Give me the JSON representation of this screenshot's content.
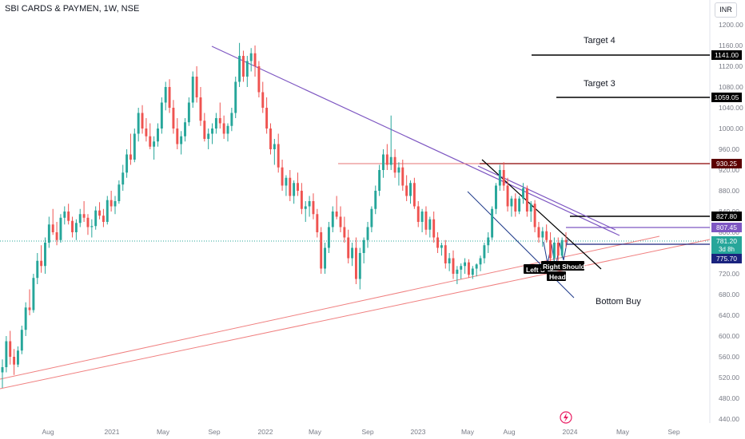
{
  "title": "SBI CARDS & PAYMEN, 1W, NSE",
  "currency": "INR",
  "colors": {
    "up": "#26a69a",
    "down": "#ef5350",
    "wedge": "#7e57c2",
    "support": "#f08080",
    "resistance": "#e57373",
    "text": "#131722",
    "axis": "#787b86"
  },
  "chart_data": {
    "type": "candlestick",
    "timeframe": "1W",
    "y_axis": {
      "ticks": [
        1200,
        1160,
        1120,
        1080,
        1040,
        1000,
        960,
        920,
        880,
        840,
        800,
        760,
        720,
        680,
        640,
        600,
        560,
        520,
        480,
        440
      ],
      "tick_labels": [
        "1200.00",
        "1160.00",
        "1120.00",
        "1080.00",
        "1040.00",
        "1000.00",
        "960.00",
        "920.00",
        "880.00",
        "840.00",
        "800.00",
        "760.00",
        "720.00",
        "680.00",
        "640.00",
        "600.00",
        "560.00",
        "520.00",
        "480.00",
        "440.00"
      ],
      "range": [
        430,
        1230
      ]
    },
    "x_axis": {
      "labels": [
        "Aug",
        "2021",
        "May",
        "Sep",
        "2022",
        "May",
        "Sep",
        "2023",
        "May",
        "Aug",
        "2024",
        "May",
        "Sep"
      ]
    },
    "price_labels": [
      {
        "value": "1141.00",
        "style": "black"
      },
      {
        "value": "1059.05",
        "style": "black"
      },
      {
        "value": "930.25",
        "style": "dark-red"
      },
      {
        "value": "827.80",
        "style": "black"
      },
      {
        "value": "807.45",
        "style": "purple"
      },
      {
        "value": "781.20",
        "style": "teal"
      },
      {
        "value": "3d 8h",
        "style": "teal"
      },
      {
        "value": "775.70",
        "style": "navy"
      }
    ],
    "annotations": [
      "Target 4",
      "Target 3",
      "Bottom Buy",
      "Left S",
      "Right Shoulder",
      "Head"
    ],
    "candles": [
      [
        530,
        555,
        500,
        540
      ],
      [
        540,
        600,
        530,
        590
      ],
      [
        590,
        610,
        545,
        560
      ],
      [
        560,
        575,
        525,
        545
      ],
      [
        545,
        580,
        540,
        572
      ],
      [
        572,
        620,
        565,
        612
      ],
      [
        612,
        665,
        600,
        655
      ],
      [
        655,
        690,
        640,
        650
      ],
      [
        650,
        720,
        645,
        712
      ],
      [
        712,
        760,
        700,
        745
      ],
      [
        745,
        775,
        722,
        735
      ],
      [
        735,
        790,
        720,
        780
      ],
      [
        780,
        830,
        770,
        815
      ],
      [
        815,
        845,
        795,
        800
      ],
      [
        800,
        820,
        775,
        785
      ],
      [
        785,
        835,
        780,
        828
      ],
      [
        828,
        850,
        815,
        840
      ],
      [
        840,
        855,
        815,
        822
      ],
      [
        822,
        830,
        790,
        800
      ],
      [
        800,
        825,
        785,
        818
      ],
      [
        818,
        845,
        810,
        835
      ],
      [
        835,
        860,
        820,
        828
      ],
      [
        828,
        835,
        795,
        810
      ],
      [
        810,
        825,
        790,
        812
      ],
      [
        812,
        850,
        805,
        842
      ],
      [
        842,
        858,
        825,
        832
      ],
      [
        832,
        845,
        810,
        820
      ],
      [
        820,
        870,
        815,
        862
      ],
      [
        862,
        880,
        840,
        850
      ],
      [
        850,
        870,
        835,
        860
      ],
      [
        860,
        900,
        855,
        892
      ],
      [
        892,
        930,
        880,
        915
      ],
      [
        915,
        960,
        905,
        950
      ],
      [
        950,
        990,
        930,
        940
      ],
      [
        940,
        1000,
        935,
        990
      ],
      [
        990,
        1040,
        975,
        1030
      ],
      [
        1030,
        1045,
        990,
        1000
      ],
      [
        1000,
        1020,
        975,
        985
      ],
      [
        985,
        1010,
        960,
        965
      ],
      [
        965,
        985,
        940,
        975
      ],
      [
        975,
        1010,
        965,
        1000
      ],
      [
        1000,
        1060,
        990,
        1050
      ],
      [
        1050,
        1090,
        1035,
        1080
      ],
      [
        1080,
        1095,
        1030,
        1040
      ],
      [
        1040,
        1055,
        990,
        1000
      ],
      [
        1000,
        1020,
        960,
        970
      ],
      [
        970,
        995,
        950,
        985
      ],
      [
        985,
        1020,
        975,
        1012
      ],
      [
        1012,
        1060,
        1005,
        1050
      ],
      [
        1050,
        1110,
        1040,
        1100
      ],
      [
        1100,
        1120,
        1050,
        1060
      ],
      [
        1060,
        1080,
        1005,
        1015
      ],
      [
        1015,
        1030,
        975,
        980
      ],
      [
        980,
        1000,
        960,
        990
      ],
      [
        990,
        1010,
        970,
        1000
      ],
      [
        1000,
        1030,
        990,
        1020
      ],
      [
        1020,
        1050,
        1000,
        1010
      ],
      [
        1010,
        1025,
        980,
        990
      ],
      [
        990,
        1010,
        975,
        1005
      ],
      [
        1005,
        1040,
        995,
        1030
      ],
      [
        1030,
        1100,
        1020,
        1090
      ],
      [
        1090,
        1165,
        1080,
        1140
      ],
      [
        1140,
        1150,
        1090,
        1100
      ],
      [
        1100,
        1140,
        1080,
        1130
      ],
      [
        1130,
        1155,
        1110,
        1145
      ],
      [
        1145,
        1160,
        1100,
        1120
      ],
      [
        1120,
        1130,
        1060,
        1070
      ],
      [
        1070,
        1090,
        1030,
        1040
      ],
      [
        1040,
        1060,
        990,
        1000
      ],
      [
        1000,
        1010,
        950,
        960
      ],
      [
        960,
        980,
        930,
        970
      ],
      [
        970,
        990,
        915,
        925
      ],
      [
        925,
        940,
        880,
        890
      ],
      [
        890,
        910,
        870,
        905
      ],
      [
        905,
        920,
        860,
        870
      ],
      [
        870,
        900,
        855,
        895
      ],
      [
        895,
        915,
        870,
        880
      ],
      [
        880,
        895,
        835,
        845
      ],
      [
        845,
        860,
        820,
        850
      ],
      [
        850,
        870,
        830,
        860
      ],
      [
        860,
        875,
        825,
        835
      ],
      [
        835,
        845,
        790,
        800
      ],
      [
        800,
        810,
        720,
        730
      ],
      [
        730,
        780,
        720,
        770
      ],
      [
        770,
        820,
        760,
        810
      ],
      [
        810,
        850,
        800,
        840
      ],
      [
        840,
        870,
        825,
        830
      ],
      [
        830,
        850,
        800,
        810
      ],
      [
        810,
        830,
        780,
        790
      ],
      [
        790,
        805,
        740,
        750
      ],
      [
        750,
        780,
        735,
        770
      ],
      [
        770,
        790,
        700,
        710
      ],
      [
        710,
        770,
        690,
        760
      ],
      [
        760,
        790,
        740,
        785
      ],
      [
        785,
        820,
        770,
        810
      ],
      [
        810,
        850,
        800,
        845
      ],
      [
        845,
        890,
        835,
        880
      ],
      [
        880,
        930,
        870,
        920
      ],
      [
        920,
        960,
        905,
        950
      ],
      [
        950,
        970,
        920,
        930
      ],
      [
        930,
        1025,
        920,
        945
      ],
      [
        945,
        960,
        905,
        915
      ],
      [
        915,
        935,
        890,
        925
      ],
      [
        925,
        940,
        880,
        890
      ],
      [
        890,
        910,
        860,
        870
      ],
      [
        870,
        900,
        855,
        895
      ],
      [
        895,
        905,
        845,
        850
      ],
      [
        850,
        860,
        810,
        820
      ],
      [
        820,
        845,
        800,
        840
      ],
      [
        840,
        850,
        795,
        805
      ],
      [
        805,
        830,
        790,
        825
      ],
      [
        825,
        840,
        780,
        790
      ],
      [
        790,
        800,
        760,
        770
      ],
      [
        770,
        780,
        755,
        775
      ],
      [
        775,
        785,
        730,
        740
      ],
      [
        740,
        760,
        725,
        750
      ],
      [
        750,
        765,
        710,
        720
      ],
      [
        720,
        735,
        700,
        728
      ],
      [
        728,
        740,
        710,
        735
      ],
      [
        735,
        750,
        720,
        742
      ],
      [
        742,
        748,
        712,
        718
      ],
      [
        718,
        735,
        710,
        730
      ],
      [
        730,
        740,
        715,
        738
      ],
      [
        738,
        755,
        725,
        750
      ],
      [
        750,
        780,
        740,
        775
      ],
      [
        775,
        800,
        760,
        790
      ],
      [
        790,
        850,
        785,
        845
      ],
      [
        845,
        895,
        835,
        890
      ],
      [
        890,
        930,
        880,
        920
      ],
      [
        920,
        935,
        880,
        890
      ],
      [
        890,
        905,
        840,
        850
      ],
      [
        850,
        870,
        830,
        865
      ],
      [
        865,
        875,
        830,
        840
      ],
      [
        840,
        870,
        835,
        865
      ],
      [
        865,
        895,
        855,
        885
      ],
      [
        885,
        890,
        830,
        840
      ],
      [
        840,
        860,
        820,
        855
      ],
      [
        855,
        862,
        800,
        810
      ],
      [
        810,
        820,
        780,
        790
      ],
      [
        790,
        810,
        772,
        802
      ],
      [
        802,
        815,
        780,
        785
      ],
      [
        785,
        800,
        740,
        750
      ],
      [
        750,
        790,
        745,
        780
      ],
      [
        780,
        790,
        745,
        755
      ],
      [
        755,
        790,
        750,
        785
      ],
      [
        785,
        800,
        770,
        781
      ]
    ]
  }
}
